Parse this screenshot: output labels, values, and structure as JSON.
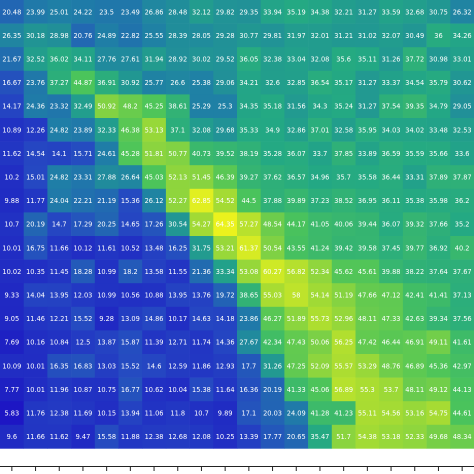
{
  "chart_data": {
    "type": "heatmap",
    "zlim": [
      5,
      65
    ],
    "colorscale": [
      "#1c12c4",
      "#2548c2",
      "#1f7fa6",
      "#23a884",
      "#4cc45a",
      "#a8dc32",
      "#f0f41c"
    ],
    "values": [
      [
        20.48,
        23.99,
        25.01,
        24.22,
        23.5,
        23.49,
        26.86,
        28.48,
        32.12,
        29.82,
        29.35,
        33.94,
        35.19,
        34.38,
        32.21,
        31.27,
        33.59,
        32.68,
        30.75,
        26.32
      ],
      [
        26.35,
        30.18,
        28.98,
        20.76,
        24.89,
        22.82,
        25.55,
        28.39,
        28.05,
        29.28,
        30.77,
        29.81,
        31.97,
        32.01,
        31.21,
        31.02,
        32.07,
        30.49,
        36.0,
        34.26
      ],
      [
        21.67,
        32.52,
        36.02,
        34.11,
        27.76,
        27.61,
        31.94,
        28.92,
        30.02,
        29.52,
        36.05,
        32.38,
        33.04,
        32.08,
        35.6,
        35.11,
        31.26,
        37.72,
        30.98,
        33.01
      ],
      [
        16.67,
        23.76,
        37.27,
        44.87,
        36.91,
        30.92,
        25.77,
        26.6,
        25.38,
        29.06,
        34.21,
        32.6,
        32.85,
        36.54,
        35.17,
        31.27,
        33.37,
        34.54,
        35.79,
        30.62
      ],
      [
        14.17,
        24.36,
        23.32,
        32.49,
        50.92,
        48.2,
        45.25,
        38.61,
        25.29,
        25.3,
        34.35,
        35.18,
        31.56,
        34.3,
        35.24,
        31.27,
        37.54,
        39.35,
        34.79,
        29.05
      ],
      [
        10.89,
        12.26,
        24.82,
        23.89,
        32.33,
        46.38,
        53.13,
        37.1,
        32.08,
        29.68,
        35.33,
        34.9,
        32.86,
        37.01,
        32.58,
        35.95,
        34.03,
        34.02,
        33.48,
        32.53
      ],
      [
        11.62,
        14.54,
        14.1,
        15.71,
        24.61,
        45.28,
        51.81,
        50.77,
        40.73,
        39.52,
        38.19,
        35.28,
        36.07,
        33.7,
        37.85,
        33.89,
        36.59,
        35.59,
        35.66,
        33.6
      ],
      [
        10.2,
        15.01,
        24.82,
        23.31,
        27.88,
        26.64,
        45.03,
        52.13,
        51.45,
        46.39,
        39.27,
        37.62,
        36.57,
        34.96,
        35.7,
        35.58,
        36.44,
        33.31,
        37.89,
        37.87
      ],
      [
        9.88,
        11.77,
        24.04,
        22.21,
        21.19,
        15.36,
        26.12,
        52.27,
        62.85,
        54.52,
        44.5,
        37.88,
        39.89,
        37.23,
        38.52,
        36.95,
        36.11,
        35.38,
        35.98,
        36.2
      ],
      [
        10.7,
        20.19,
        14.7,
        17.29,
        20.25,
        14.65,
        17.26,
        30.54,
        54.27,
        64.35,
        57.27,
        48.54,
        44.17,
        41.05,
        40.06,
        39.44,
        36.07,
        39.32,
        37.66,
        35.2
      ],
      [
        10.01,
        16.75,
        11.66,
        10.12,
        11.61,
        10.52,
        13.48,
        16.25,
        31.75,
        53.21,
        61.37,
        50.54,
        43.55,
        41.24,
        39.42,
        39.58,
        37.45,
        39.77,
        36.92,
        40.2
      ],
      [
        10.02,
        10.35,
        11.45,
        18.28,
        10.99,
        18.2,
        13.58,
        11.55,
        21.36,
        33.34,
        53.08,
        60.27,
        56.82,
        52.34,
        45.62,
        45.61,
        39.88,
        38.22,
        37.64,
        37.67
      ],
      [
        9.33,
        14.04,
        13.95,
        12.03,
        10.99,
        10.56,
        10.88,
        13.95,
        13.76,
        19.72,
        38.65,
        55.03,
        58.0,
        54.14,
        51.19,
        47.66,
        47.12,
        42.41,
        41.41,
        37.13
      ],
      [
        9.05,
        11.46,
        12.21,
        15.52,
        9.28,
        13.09,
        14.86,
        10.17,
        14.63,
        14.18,
        23.86,
        46.27,
        51.89,
        55.73,
        52.96,
        48.11,
        47.33,
        42.63,
        39.34,
        37.56
      ],
      [
        7.69,
        10.16,
        10.84,
        12.5,
        13.87,
        15.87,
        11.39,
        12.71,
        11.74,
        14.36,
        27.67,
        42.34,
        47.43,
        50.06,
        56.25,
        47.42,
        46.44,
        46.91,
        49.11,
        41.61
      ],
      [
        10.09,
        10.01,
        16.35,
        16.83,
        13.03,
        15.52,
        14.6,
        12.59,
        11.86,
        12.93,
        17.7,
        31.26,
        47.25,
        52.09,
        55.57,
        53.29,
        48.76,
        46.89,
        45.36,
        42.97
      ],
      [
        7.77,
        10.01,
        11.96,
        10.87,
        10.75,
        16.77,
        10.62,
        10.04,
        15.38,
        11.64,
        16.36,
        20.19,
        41.33,
        45.06,
        56.89,
        55.3,
        53.7,
        48.11,
        49.12,
        44.13
      ],
      [
        5.83,
        11.76,
        12.38,
        11.69,
        10.15,
        13.94,
        11.06,
        11.8,
        10.7,
        9.89,
        17.1,
        20.03,
        24.09,
        41.28,
        41.23,
        55.11,
        54.56,
        53.16,
        54.75,
        44.61
      ],
      [
        9.6,
        11.66,
        11.62,
        9.47,
        15.58,
        11.88,
        12.38,
        12.68,
        12.08,
        10.25,
        13.39,
        17.77,
        20.65,
        35.47,
        51.7,
        54.38,
        53.18,
        52.33,
        49.68,
        48.34
      ]
    ]
  }
}
